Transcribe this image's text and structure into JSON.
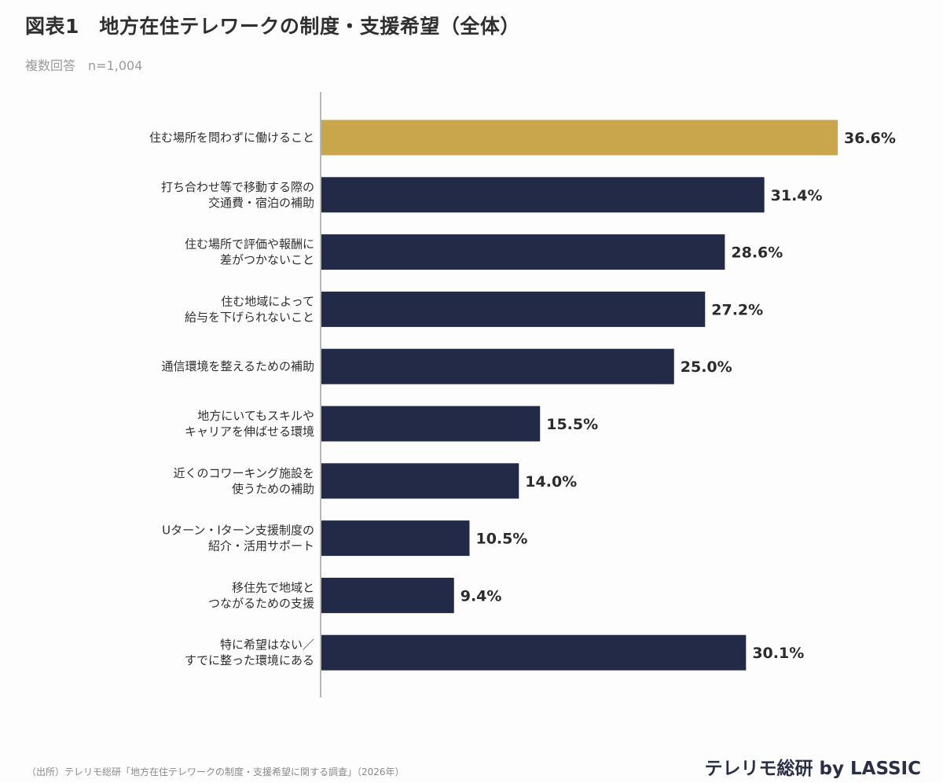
{
  "header": {
    "title": "図表1　地方在住テレワークの制度・支援希望（全体）",
    "subtitle": "複数回答　n=1,004"
  },
  "footer": {
    "source": "（出所）テレリモ総研「地方在住テレワークの制度・支援希望に関する調査」（2026年）",
    "brand": "テレリモ総研 by LASSIC"
  },
  "colors": {
    "highlight": "#c9a64b",
    "bar": "#222a48",
    "axis": "#a0a0a0"
  },
  "chart_data": {
    "type": "bar",
    "orientation": "horizontal",
    "title": "図表1　地方在住テレワークの制度・支援希望（全体）",
    "subtitle": "複数回答　n=1,004",
    "unit": "%",
    "grid": false,
    "legend": "none",
    "xlim": [
      0,
      36.6
    ],
    "categories": [
      [
        "住む場所を問わずに働けること"
      ],
      [
        "打ち合わせ等で移動する際の",
        "交通費・宿泊の補助"
      ],
      [
        "住む場所で評価や報酬に",
        "差がつかないこと"
      ],
      [
        "住む地域によって",
        "給与を下げられないこと"
      ],
      [
        "通信環境を整えるための補助"
      ],
      [
        "地方にいてもスキルや",
        "キャリアを伸ばせる環境"
      ],
      [
        "近くのコワーキング施設を",
        "使うための補助"
      ],
      [
        "Uターン・Iターン支援制度の",
        "紹介・活用サポート"
      ],
      [
        "移住先で地域と",
        "つながるための支援"
      ],
      [
        "特に希望はない／",
        "すでに整った環境にある"
      ]
    ],
    "values": [
      36.6,
      31.4,
      28.6,
      27.2,
      25.0,
      15.5,
      14.0,
      10.5,
      9.4,
      30.1
    ],
    "value_labels": [
      "36.6%",
      "31.4%",
      "28.6%",
      "27.2%",
      "25.0%",
      "15.5%",
      "14.0%",
      "10.5%",
      "9.4%",
      "30.1%"
    ],
    "highlight_index": 0
  }
}
